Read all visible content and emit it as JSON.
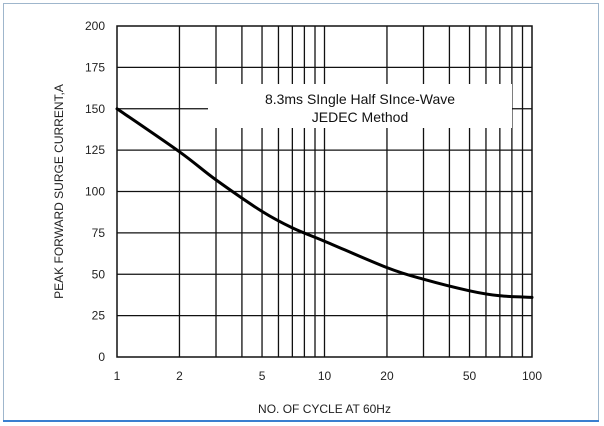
{
  "chart_data": {
    "type": "line",
    "title": "",
    "xlabel": "NO. OF CYCLE AT 60Hz",
    "ylabel": "PEAK FORWARD SURGE CURRENT,A",
    "x_scale": "log",
    "xlim": [
      1,
      100
    ],
    "ylim": [
      0,
      200
    ],
    "grid": true,
    "x_ticks": [
      1,
      2,
      5,
      10,
      20,
      50,
      100
    ],
    "y_ticks": [
      0,
      25,
      50,
      75,
      100,
      125,
      150,
      175,
      200
    ],
    "annotation": [
      "8.3ms SIngle Half SInce-Wave",
      "JEDEC Method"
    ],
    "series": [
      {
        "x": [
          1,
          2,
          3,
          5,
          7,
          10,
          20,
          30,
          50,
          70,
          100
        ],
        "y": [
          150,
          124,
          107,
          88,
          78,
          70,
          54,
          47,
          40,
          37,
          36
        ]
      }
    ]
  },
  "colors": {
    "grid": "#111111",
    "curve": "#000000",
    "frame": "#9fb6cc",
    "accent": "#3a7fd0"
  }
}
